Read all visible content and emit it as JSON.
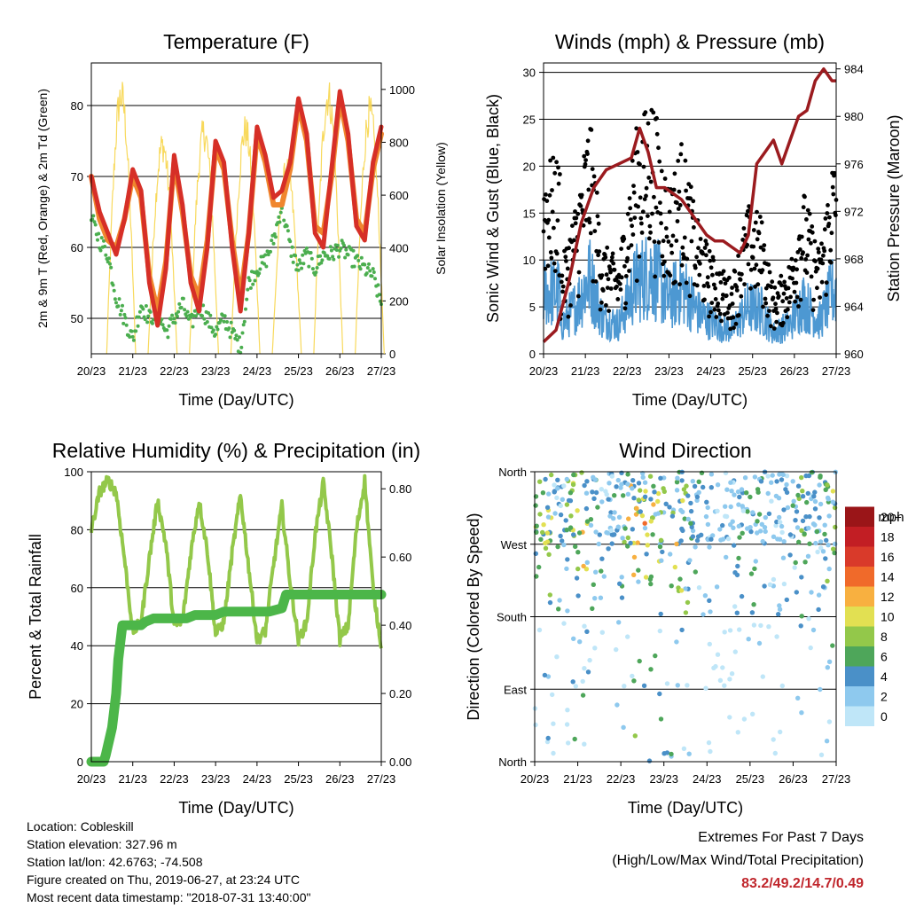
{
  "x_ticks": [
    "20/23",
    "21/23",
    "22/23",
    "23/23",
    "24/23",
    "25/23",
    "26/23",
    "27/23"
  ],
  "panels": {
    "temperature": {
      "title": "Temperature (F)",
      "ylabel": "2m & 9m T (Red, Orange) & 2m Td (Green)",
      "y2label": "Solar Insolation (Yellow)",
      "xlabel": "Time (Day/UTC)",
      "yticks": [
        "50",
        "60",
        "70",
        "80"
      ],
      "y2ticks": [
        "0",
        "200",
        "400",
        "600",
        "800",
        "1000"
      ]
    },
    "winds": {
      "title": "Winds (mph) & Pressure (mb)",
      "ylabel": "Sonic Wind & Gust (Blue, Black)",
      "y2label": "Station Pressure (Maroon)",
      "xlabel": "Time (Day/UTC)",
      "yticks": [
        "0",
        "5",
        "10",
        "15",
        "20",
        "25",
        "30"
      ],
      "y2ticks": [
        "960",
        "964",
        "968",
        "972",
        "976",
        "980",
        "984"
      ]
    },
    "humidity": {
      "title": "Relative Humidity (%) & Precipitation (in)",
      "ylabel": "Percent & Total Rainfall",
      "xlabel": "Time (Day/UTC)",
      "yticks": [
        "0",
        "20",
        "40",
        "60",
        "80",
        "100"
      ],
      "y2ticks": [
        "0.00",
        "0.20",
        "0.40",
        "0.60",
        "0.80"
      ]
    },
    "direction": {
      "title": "Wind Direction",
      "ylabel": "Direction (Colored By Speed)",
      "xlabel": "Time (Day/UTC)",
      "yticks": [
        "North",
        "East",
        "South",
        "West",
        "North"
      ],
      "legend_title": "mph",
      "legend_labels": [
        "0",
        "2",
        "4",
        "6",
        "8",
        "10",
        "12",
        "14",
        "16",
        "18",
        "20+"
      ],
      "legend_colors": [
        "#bfe6f8",
        "#8ec9ee",
        "#4a90c8",
        "#4ea65a",
        "#93c84a",
        "#e2e052",
        "#f8b040",
        "#f06a2a",
        "#d93a2a",
        "#c21e24",
        "#9a1518"
      ]
    }
  },
  "chart_data": [
    {
      "type": "line",
      "title": "Temperature (F)",
      "x_domain": [
        0,
        7
      ],
      "ylim": [
        45,
        86
      ],
      "y2lim": [
        0,
        1100
      ],
      "series": [
        {
          "color": "#d62f27",
          "x": [
            0,
            0.2,
            0.4,
            0.6,
            0.8,
            1.0,
            1.2,
            1.4,
            1.6,
            1.8,
            2.0,
            2.2,
            2.4,
            2.6,
            2.8,
            3.0,
            3.2,
            3.4,
            3.6,
            3.8,
            4.0,
            4.2,
            4.4,
            4.6,
            4.8,
            5.0,
            5.2,
            5.4,
            5.6,
            5.8,
            6.0,
            6.2,
            6.4,
            6.6,
            6.8,
            7.0
          ],
          "y": [
            70,
            65,
            62,
            59,
            64,
            71,
            68,
            55,
            49,
            57,
            73,
            66,
            55,
            51,
            60,
            75,
            72,
            60,
            51,
            62,
            77,
            73,
            67,
            68,
            72,
            81,
            76,
            62,
            60,
            71,
            82,
            76,
            63,
            61,
            72,
            77
          ]
        },
        {
          "color": "#f0862e",
          "x": [
            0,
            0.2,
            0.4,
            0.6,
            0.8,
            1.0,
            1.2,
            1.4,
            1.6,
            1.8,
            2.0,
            2.2,
            2.4,
            2.6,
            2.8,
            3.0,
            3.2,
            3.4,
            3.6,
            3.8,
            4.0,
            4.2,
            4.4,
            4.6,
            4.8,
            5.0,
            5.2,
            5.4,
            5.6,
            5.8,
            6.0,
            6.2,
            6.4,
            6.6,
            6.8,
            7.0
          ],
          "y": [
            70,
            64,
            61,
            60,
            64,
            70,
            67,
            56,
            51,
            58,
            72,
            65,
            56,
            53,
            61,
            74,
            71,
            61,
            53,
            62,
            76,
            72,
            66,
            66,
            71,
            80,
            75,
            63,
            62,
            70,
            81,
            75,
            64,
            62,
            71,
            76
          ]
        },
        {
          "color": "#4bae4f",
          "x": [
            0,
            0.2,
            0.4,
            0.6,
            0.8,
            1.0,
            1.2,
            1.4,
            1.6,
            1.8,
            2.0,
            2.2,
            2.4,
            2.6,
            2.8,
            3.0,
            3.2,
            3.4,
            3.6,
            3.8,
            4.0,
            4.2,
            4.4,
            4.6,
            4.8,
            5.0,
            5.2,
            5.4,
            5.6,
            5.8,
            6.0,
            6.2,
            6.4,
            6.6,
            6.8,
            7.0
          ],
          "y": [
            64,
            61,
            59,
            53,
            50,
            47,
            52,
            50,
            51,
            48,
            50,
            52,
            49,
            52,
            50,
            48,
            50,
            48,
            46,
            55,
            57,
            58,
            61,
            66,
            60,
            57,
            59,
            57,
            59,
            59,
            60,
            59,
            58,
            57,
            56,
            52
          ]
        },
        {
          "name_hidden": "solar",
          "color": "#f7d54a",
          "axis": "y2",
          "peaks_x": [
            0.72,
            1.72,
            2.72,
            3.72,
            4.72,
            5.72,
            6.72
          ],
          "peaks": [
            1050,
            850,
            900,
            910,
            750,
            1050,
            980
          ]
        }
      ]
    },
    {
      "type": "scatter",
      "title": "Winds (mph) & Pressure (mb)",
      "x_domain": [
        0,
        7
      ],
      "ylim": [
        0,
        30
      ],
      "y2lim": [
        960,
        984
      ],
      "pressure": {
        "color": "#9b1b1f",
        "x": [
          0,
          0.3,
          0.6,
          0.9,
          1.2,
          1.5,
          1.8,
          2.1,
          2.3,
          2.5,
          2.7,
          2.9,
          3.1,
          3.3,
          3.5,
          3.7,
          3.9,
          4.1,
          4.3,
          4.5,
          4.7,
          4.9,
          5.1,
          5.3,
          5.5,
          5.7,
          5.9,
          6.1,
          6.3,
          6.5,
          6.7,
          6.9,
          7.0
        ],
        "y": [
          961,
          962,
          966,
          971,
          974,
          975.5,
          976,
          976.5,
          979,
          977,
          974,
          974,
          973.5,
          973,
          972,
          971,
          970,
          969.5,
          969.5,
          969,
          968.5,
          970,
          976,
          977,
          978,
          976,
          978,
          980,
          980.5,
          983,
          984,
          983,
          983
        ]
      },
      "gust_peaks": {
        "color": "#000000",
        "x": [
          0.4,
          0.8,
          1.1,
          1.4,
          1.8,
          2.2,
          2.6,
          3.0,
          3.3,
          3.7,
          4.1,
          4.5,
          4.9,
          5.2,
          5.5,
          5.9,
          6.2,
          6.6,
          6.9
        ],
        "y": [
          9,
          17,
          26,
          12,
          10,
          24,
          28,
          18,
          23,
          14,
          10,
          8,
          16,
          15,
          7,
          10,
          18,
          11,
          21
        ]
      },
      "wind": {
        "color": "#4d98d2"
      }
    },
    {
      "type": "line",
      "title": "Relative Humidity (%) & Precipitation (in)",
      "x_domain": [
        0,
        7
      ],
      "ylim": [
        0,
        100
      ],
      "y2lim": [
        0,
        0.85
      ],
      "rh": {
        "color": "#93c84a",
        "x": [
          0,
          0.2,
          0.4,
          0.6,
          0.8,
          1.0,
          1.2,
          1.4,
          1.6,
          1.8,
          2.0,
          2.2,
          2.4,
          2.6,
          2.8,
          3.0,
          3.2,
          3.4,
          3.6,
          3.8,
          4.0,
          4.2,
          4.4,
          4.6,
          4.8,
          5.0,
          5.2,
          5.4,
          5.6,
          5.8,
          6.0,
          6.2,
          6.4,
          6.6,
          6.8,
          7.0
        ],
        "y": [
          80,
          93,
          97,
          93,
          70,
          45,
          48,
          70,
          90,
          75,
          47,
          48,
          72,
          90,
          73,
          44,
          48,
          72,
          92,
          67,
          42,
          45,
          68,
          88,
          62,
          42,
          48,
          78,
          96,
          72,
          42,
          47,
          80,
          97,
          60,
          40
        ]
      },
      "precip": {
        "color": "#4cb649",
        "x": [
          0,
          0.3,
          0.35,
          0.5,
          0.6,
          0.65,
          0.75,
          0.9,
          1.0,
          1.2,
          1.3,
          1.5,
          2.0,
          2.3,
          2.5,
          3.0,
          3.2,
          4.0,
          4.3,
          4.6,
          4.7,
          5.0,
          6.0,
          7.0
        ],
        "y": [
          0,
          0,
          0.02,
          0.1,
          0.2,
          0.3,
          0.4,
          0.4,
          0.4,
          0.4,
          0.41,
          0.42,
          0.42,
          0.42,
          0.43,
          0.43,
          0.44,
          0.44,
          0.44,
          0.45,
          0.49,
          0.49,
          0.49,
          0.49
        ]
      }
    },
    {
      "type": "scatter",
      "title": "Wind Direction",
      "x_domain": [
        0,
        7
      ],
      "ylim": [
        0,
        360
      ],
      "note": "direction points colored by speed"
    }
  ],
  "footer": {
    "location": "Location: Cobleskill",
    "elevation": "Station elevation: 327.96 m",
    "latlon": "Station lat/lon: 42.6763; -74.508",
    "created": "Figure created on Thu, 2019-06-27, at 23:24 UTC",
    "timestamp": "Most recent data timestamp: \"2018-07-31 13:40:00\"",
    "extremes_title": "Extremes For Past 7 Days",
    "extremes_sub": "(High/Low/Max Wind/Total Precipitation)",
    "extremes_values": "83.2/49.2/14.7/0.49"
  }
}
